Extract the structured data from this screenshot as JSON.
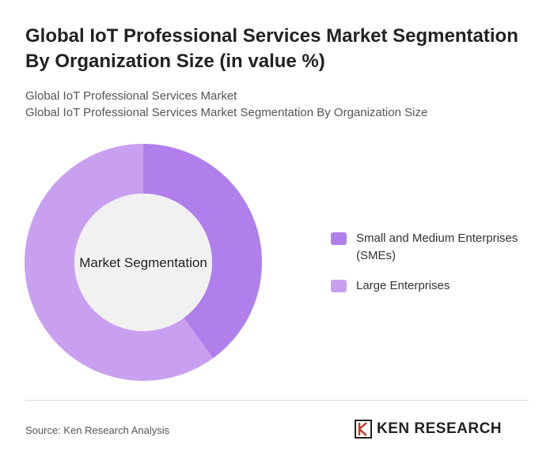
{
  "chart_data": {
    "type": "donut",
    "title": "Global IoT Professional Services Market Segmentation By Organization Size (in value %)",
    "subtitle": [
      "Global IoT Professional Services Market",
      "Global IoT Professional Services Market Segmentation By Organization Size"
    ],
    "center_label": "Market Segmentation",
    "categories": [
      "Small and Medium Enterprises (SMEs)",
      "Large Enterprises"
    ],
    "values": [
      40,
      60
    ],
    "colors": [
      "#b07fec",
      "#c9a0f0"
    ],
    "legend": "right"
  },
  "footer": {
    "source": "Source: Ken Research Analysis",
    "logo": "KEN RESEARCH"
  }
}
